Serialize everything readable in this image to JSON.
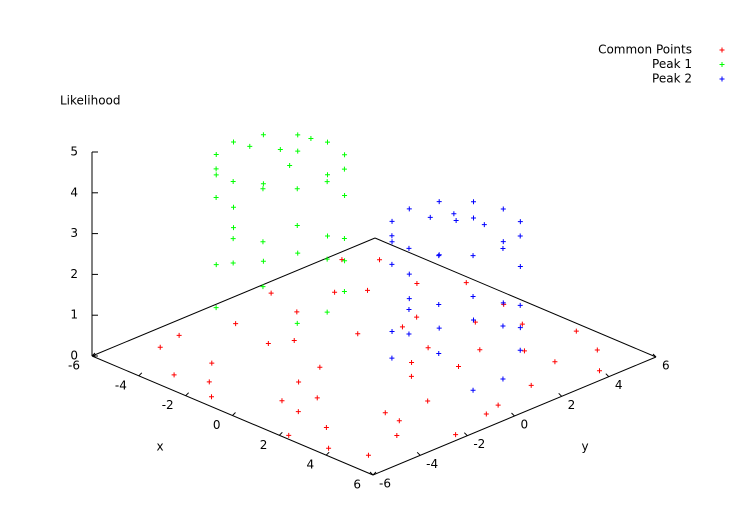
{
  "chart_data": {
    "type": "scatter3d",
    "zlabel": "Likelihood",
    "xlabel": "x",
    "ylabel": "y",
    "xlim": [
      -6,
      6
    ],
    "ylim": [
      -6,
      6
    ],
    "zlim": [
      0,
      5
    ],
    "xticks": [
      -6,
      -4,
      -2,
      0,
      2,
      4,
      6
    ],
    "yticks": [
      -6,
      -4,
      -2,
      0,
      2,
      4,
      6
    ],
    "zticks": [
      0,
      1,
      2,
      3,
      4,
      5
    ],
    "legend": "top-right",
    "series": [
      {
        "name": "Common Points",
        "color": "#ff0000",
        "x": [
          -5.2,
          -4.1,
          -3.3,
          -2.8,
          -1.5,
          -0.6,
          0.4,
          1.2,
          2.3,
          3.1,
          4.4,
          5.3,
          -5.6,
          -4.6,
          -3.9,
          -2.2,
          -1.1,
          0.1,
          0.9,
          1.8,
          2.9,
          3.7,
          4.8,
          5.7,
          -5.0,
          -3.5,
          -2.5,
          -1.8,
          -0.3,
          0.7,
          1.5,
          2.6,
          3.4,
          4.1,
          5.1,
          -4.8,
          -3.1,
          -1.4,
          0.3,
          1.9,
          3.0,
          4.5,
          5.5,
          -5.4,
          -2.9,
          -0.9,
          1.1,
          2.2,
          3.8,
          4.9
        ],
        "y": [
          -3.1,
          2.4,
          -5.2,
          4.6,
          0.8,
          -1.7,
          3.9,
          -4.4,
          1.3,
          -2.6,
          5.1,
          -0.5,
          4.2,
          -1.3,
          0.6,
          -4.8,
          2.9,
          5.4,
          -3.3,
          -0.2,
          3.5,
          -5.6,
          1.9,
          -2.2,
          -4.1,
          3.2,
          -0.9,
          5.7,
          -2.9,
          1.6,
          4.8,
          -4.6,
          -1.1,
          3.6,
          0.2,
          5.0,
          -3.8,
          -5.5,
          -4.2,
          2.6,
          5.6,
          -3.5,
          4.1,
          1.0,
          -1.6,
          2.1,
          0.5,
          -5.8,
          -2.7,
          -5.1
        ],
        "z": [
          0,
          0,
          0,
          0,
          0,
          0,
          0,
          0,
          0,
          0,
          0,
          0,
          0,
          0,
          0,
          0,
          0,
          0,
          0,
          0,
          0,
          0,
          0,
          0,
          0,
          0,
          0,
          0,
          0,
          0,
          0,
          0,
          0,
          0,
          0,
          0,
          0,
          0,
          0,
          0,
          0,
          0,
          0,
          0,
          0,
          0,
          0,
          0,
          0,
          0
        ]
      },
      {
        "name": "Peak 1",
        "color": "#00ff00",
        "x": [
          -2,
          -2.27,
          -3,
          -4,
          -5,
          -5.73,
          -6,
          -5.73,
          -5,
          -4,
          -3,
          -2.27,
          -2,
          -2.27,
          -3,
          -4,
          -5,
          -5.73,
          -6,
          -5.73,
          -5,
          -4,
          -3,
          -2.27,
          -2,
          -2.27,
          -3,
          -4,
          -5,
          -5.73,
          -6,
          -5.73,
          -5,
          -4,
          -3,
          -2.27,
          -4,
          -3.5,
          -4.6,
          -3.2
        ],
        "y": [
          0,
          1,
          1.73,
          2,
          1.73,
          1,
          0,
          -1,
          -1.73,
          -2,
          -1.73,
          -1,
          0,
          1,
          1.73,
          2,
          1.73,
          1,
          0,
          -1,
          -1.73,
          -2,
          -1.73,
          -1,
          0,
          1,
          1.73,
          2,
          1.73,
          1,
          0,
          -1,
          -1.73,
          -2,
          -1.73,
          -1,
          0,
          0.8,
          -0.7,
          -0.4
        ],
        "z": [
          3.8,
          3.8,
          3.8,
          3.8,
          3.8,
          3.8,
          3.8,
          3.8,
          3.8,
          3.8,
          3.8,
          3.8,
          0.6,
          2.1,
          1.2,
          3.0,
          0.9,
          2.6,
          1.7,
          3.3,
          0.4,
          2.4,
          1.4,
          2.9,
          1.9,
          0.8,
          2.8,
          1.5,
          3.4,
          0.7,
          2.2,
          1.1,
          3.1,
          1.8,
          2.5,
          0.5,
          4.1,
          4.3,
          4.2,
          4.0
        ]
      },
      {
        "name": "Peak 2",
        "color": "#0000ff",
        "x": [
          4.5,
          4.23,
          3.5,
          2.5,
          1.5,
          0.77,
          0.5,
          0.77,
          1.5,
          2.5,
          3.5,
          4.23,
          4.5,
          4.23,
          3.5,
          2.5,
          1.5,
          0.77,
          0.5,
          0.77,
          1.5,
          2.5,
          3.5,
          4.23,
          4.5,
          4.23,
          3.5,
          2.5,
          1.5,
          0.77,
          0.5,
          0.77,
          1.5,
          2.5,
          3.5,
          4.23,
          2.5,
          3.1,
          2,
          1.9
        ],
        "y": [
          1,
          2,
          2.73,
          3,
          2.73,
          2,
          1,
          0,
          -0.73,
          -1,
          -0.73,
          0,
          1,
          2,
          2.73,
          3,
          2.73,
          2,
          1,
          0,
          -0.73,
          -1,
          -0.73,
          0,
          1,
          2,
          2.73,
          3,
          2.73,
          2,
          1,
          0,
          -0.73,
          -1,
          -0.73,
          0,
          1,
          1.6,
          0.4,
          1.5
        ],
        "z": [
          3.5,
          3.5,
          3.5,
          3.5,
          3.5,
          3.5,
          3.5,
          3.5,
          3.5,
          3.5,
          3.5,
          3.5,
          0.3,
          1.8,
          0.9,
          2.7,
          0.6,
          2.2,
          1.3,
          3.0,
          0.5,
          2.0,
          1.1,
          2.5,
          1.6,
          0.7,
          2.4,
          1.2,
          3.1,
          0.4,
          1.9,
          0.8,
          2.8,
          1.4,
          2.3,
          0.2,
          3.7,
          3.6,
          3.8,
          3.6
        ]
      }
    ]
  }
}
